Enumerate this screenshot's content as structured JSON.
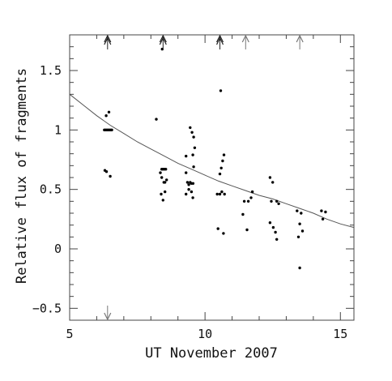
{
  "chart_data": {
    "type": "scatter",
    "title": "",
    "xlabel": "UT November 2007",
    "ylabel": "Relative flux of fragments",
    "xlim": [
      5,
      15.5
    ],
    "ylim": [
      -0.6,
      1.8
    ],
    "xticks": [
      5,
      10,
      15
    ],
    "xtick_labels": [
      "5",
      "10",
      "15"
    ],
    "yticks": [
      -0.5,
      0,
      0.5,
      1,
      1.5
    ],
    "ytick_labels": [
      "−0.5",
      "0",
      "0.5",
      "1",
      "1.5"
    ],
    "grid": false,
    "legend": "none",
    "colors": {
      "points": "#000000",
      "curve": "#555555",
      "arrow_dark": "#222222",
      "arrow_light": "#777777"
    },
    "series": [
      {
        "values": [
          [
            6.28,
            1.0
          ],
          [
            6.32,
            1.0
          ],
          [
            6.36,
            1.0
          ],
          [
            6.4,
            1.0
          ],
          [
            6.44,
            1.0
          ],
          [
            6.48,
            1.0
          ],
          [
            6.52,
            1.0
          ],
          [
            6.56,
            1.0
          ],
          [
            6.35,
            1.12
          ],
          [
            6.45,
            1.15
          ],
          [
            6.3,
            0.66
          ],
          [
            6.36,
            0.65
          ],
          [
            6.5,
            0.61
          ],
          [
            8.2,
            1.09
          ],
          [
            8.42,
            1.68
          ],
          [
            8.35,
            0.64
          ],
          [
            8.4,
            0.67
          ],
          [
            8.45,
            0.67
          ],
          [
            8.5,
            0.67
          ],
          [
            8.55,
            0.67
          ],
          [
            8.4,
            0.6
          ],
          [
            8.48,
            0.56
          ],
          [
            8.52,
            0.56
          ],
          [
            8.58,
            0.58
          ],
          [
            8.38,
            0.46
          ],
          [
            8.45,
            0.41
          ],
          [
            8.52,
            0.48
          ],
          [
            9.3,
            0.78
          ],
          [
            9.45,
            1.02
          ],
          [
            9.52,
            0.98
          ],
          [
            9.58,
            0.94
          ],
          [
            9.62,
            0.85
          ],
          [
            9.55,
            0.79
          ],
          [
            9.3,
            0.64
          ],
          [
            9.35,
            0.56
          ],
          [
            9.4,
            0.54
          ],
          [
            9.45,
            0.56
          ],
          [
            9.5,
            0.55
          ],
          [
            9.56,
            0.55
          ],
          [
            9.58,
            0.69
          ],
          [
            9.4,
            0.5
          ],
          [
            9.5,
            0.48
          ],
          [
            9.3,
            0.46
          ],
          [
            9.55,
            0.43
          ],
          [
            10.45,
            0.46
          ],
          [
            10.55,
            0.46
          ],
          [
            10.58,
            1.33
          ],
          [
            10.7,
            0.79
          ],
          [
            10.65,
            0.74
          ],
          [
            10.6,
            0.68
          ],
          [
            10.55,
            0.63
          ],
          [
            10.62,
            0.48
          ],
          [
            10.72,
            0.46
          ],
          [
            10.48,
            0.17
          ],
          [
            10.68,
            0.13
          ],
          [
            11.45,
            0.4
          ],
          [
            11.6,
            0.4
          ],
          [
            11.7,
            0.43
          ],
          [
            11.75,
            0.48
          ],
          [
            11.4,
            0.29
          ],
          [
            11.55,
            0.16
          ],
          [
            12.4,
            0.6
          ],
          [
            12.5,
            0.56
          ],
          [
            12.45,
            0.4
          ],
          [
            12.65,
            0.4
          ],
          [
            12.72,
            0.38
          ],
          [
            12.4,
            0.22
          ],
          [
            12.52,
            0.18
          ],
          [
            12.6,
            0.14
          ],
          [
            12.65,
            0.08
          ],
          [
            13.4,
            0.32
          ],
          [
            13.55,
            0.3
          ],
          [
            13.5,
            0.21
          ],
          [
            13.6,
            0.15
          ],
          [
            13.45,
            0.1
          ],
          [
            13.5,
            -0.16
          ],
          [
            14.3,
            0.32
          ],
          [
            14.45,
            0.31
          ],
          [
            14.35,
            0.25
          ]
        ]
      }
    ],
    "fit_curve": [
      [
        5.0,
        1.3
      ],
      [
        5.5,
        1.21
      ],
      [
        6.0,
        1.12
      ],
      [
        6.5,
        1.04
      ],
      [
        7.0,
        0.97
      ],
      [
        7.5,
        0.9
      ],
      [
        8.0,
        0.84
      ],
      [
        8.5,
        0.78
      ],
      [
        9.0,
        0.72
      ],
      [
        9.5,
        0.67
      ],
      [
        10.0,
        0.62
      ],
      [
        10.5,
        0.57
      ],
      [
        11.0,
        0.53
      ],
      [
        11.5,
        0.49
      ],
      [
        12.0,
        0.45
      ],
      [
        12.5,
        0.42
      ],
      [
        13.0,
        0.38
      ],
      [
        13.5,
        0.34
      ],
      [
        14.0,
        0.3
      ],
      [
        14.5,
        0.25
      ],
      [
        15.0,
        0.21
      ],
      [
        15.5,
        0.18
      ]
    ],
    "top_arrows": [
      {
        "x": 6.4,
        "shade": "dark"
      },
      {
        "x": 8.45,
        "shade": "dark"
      },
      {
        "x": 10.55,
        "shade": "dark"
      },
      {
        "x": 11.5,
        "shade": "light"
      },
      {
        "x": 13.5,
        "shade": "light"
      }
    ],
    "bottom_arrows": [
      {
        "x": 6.4,
        "shade": "light"
      }
    ]
  }
}
